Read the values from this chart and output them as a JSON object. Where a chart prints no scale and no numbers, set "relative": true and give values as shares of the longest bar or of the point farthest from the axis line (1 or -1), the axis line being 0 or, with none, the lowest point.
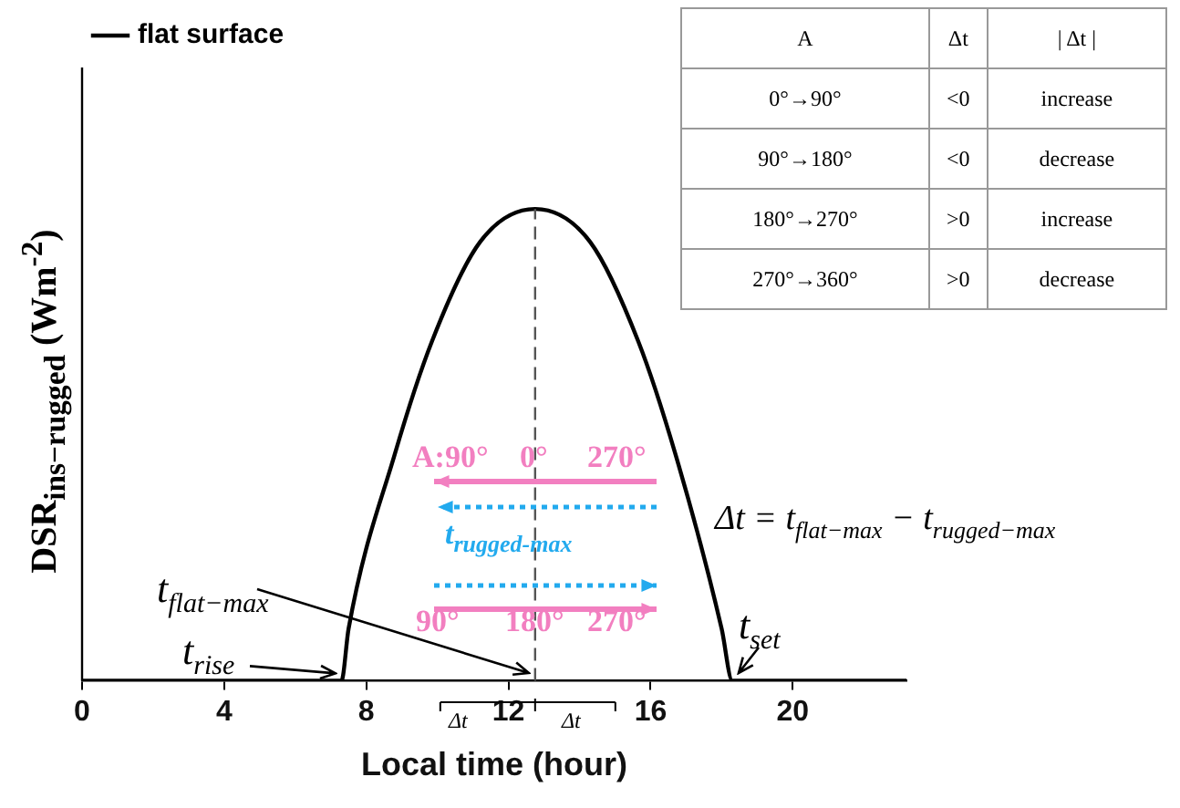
{
  "chart_data": {
    "type": "line",
    "relative": true,
    "xlabel": "Local time (hour)",
    "ylabel": "DSR$_{ins−rugged}$  (Wm$^{-2}$)",
    "xlim": [
      0,
      23.2
    ],
    "xticks": [
      0,
      4,
      8,
      12,
      16,
      20
    ],
    "legend": "top left",
    "marker": "none",
    "series": [
      {
        "name": "flat surface",
        "color": "#000000",
        "x": [
          0,
          7.3,
          7.5,
          8.8,
          9.85,
          11.2,
          12.75,
          14.3,
          15.65,
          16.7,
          18.0,
          18.3,
          23.2
        ],
        "values": [
          0,
          0,
          0.11,
          0.48,
          0.72,
          0.93,
          1,
          0.93,
          0.72,
          0.48,
          0.11,
          0,
          0
        ]
      }
    ],
    "ref_lines": [
      {
        "axis": "x",
        "value": 12.75,
        "color": "#555555",
        "line_style": "dashed"
      }
    ],
    "annotations": [
      "A",
      "Δt",
      "| Δt |",
      "0°→90°",
      "<0",
      "increase",
      "90°→180°",
      "<0",
      "decrease",
      "180°→270°",
      ">0",
      "increase",
      "270°→360°",
      ">0",
      "decrease",
      "A:90°",
      "0°",
      "270°",
      "t$_{rugged-max}$",
      "90°",
      "180°",
      "270°",
      "Δt = t$_{flat−max}$ − t$_{rugged−max}$",
      {
        "text": "t$_{rise}$",
        "x": 7.3,
        "y": 0
      },
      {
        "text": "t$_{flat−max}$",
        "x": 12.75,
        "y": 0
      },
      {
        "text": "t$_{set}$",
        "x": 18.3,
        "y": 0
      },
      "Δt",
      "Δt"
    ]
  }
}
